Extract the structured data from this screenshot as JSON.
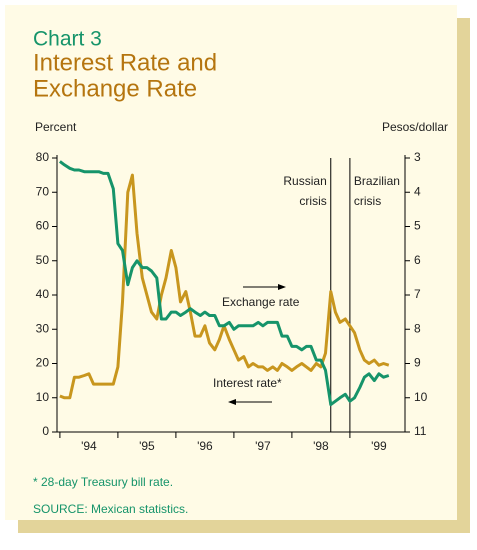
{
  "chart_data": {
    "type": "line",
    "kicker": "Chart 3",
    "title": [
      "Interest Rate and",
      "Exchange Rate"
    ],
    "ylabel": "Percent",
    "y2label": "Pesos/dollar",
    "x": [
      1994,
      1994.08,
      1994.17,
      1994.25,
      1994.33,
      1994.42,
      1994.5,
      1994.58,
      1994.67,
      1994.75,
      1994.83,
      1994.92,
      1995,
      1995.08,
      1995.17,
      1995.25,
      1995.33,
      1995.42,
      1995.5,
      1995.58,
      1995.67,
      1995.75,
      1995.83,
      1995.92,
      1996,
      1996.08,
      1996.17,
      1996.25,
      1996.33,
      1996.42,
      1996.5,
      1996.58,
      1996.67,
      1996.75,
      1996.83,
      1996.92,
      1997,
      1997.08,
      1997.17,
      1997.25,
      1997.33,
      1997.42,
      1997.5,
      1997.58,
      1997.67,
      1997.75,
      1997.83,
      1997.92,
      1998,
      1998.08,
      1998.17,
      1998.25,
      1998.33,
      1998.42,
      1998.5,
      1998.58,
      1998.67,
      1998.75,
      1998.83,
      1998.92,
      1999,
      1999.08,
      1999.17,
      1999.25,
      1999.33,
      1999.42,
      1999.5,
      1999.58,
      1999.67
    ],
    "series": [
      {
        "name": "Interest rate*",
        "color": "#c8961e",
        "axis": "y",
        "values": [
          10.5,
          10,
          10,
          16,
          16,
          16.5,
          17,
          14,
          14,
          14,
          14,
          14,
          19,
          38,
          70,
          75,
          58,
          45,
          40,
          35,
          33,
          40,
          45,
          53,
          48,
          38,
          41,
          35,
          28,
          28,
          31,
          26,
          24,
          27,
          31,
          27,
          24,
          21,
          22,
          19,
          20,
          19,
          19,
          18,
          19,
          18,
          20,
          19,
          18,
          19,
          20,
          19,
          18,
          20,
          19,
          23,
          41,
          35,
          32,
          33,
          31,
          29,
          24,
          21,
          20,
          21,
          19.5,
          20,
          19.5
        ]
      },
      {
        "name": "Exchange rate",
        "color": "#16946a",
        "axis": "y2",
        "values": [
          3.1,
          3.2,
          3.3,
          3.35,
          3.35,
          3.4,
          3.4,
          3.4,
          3.4,
          3.45,
          3.45,
          3.9,
          5.5,
          5.7,
          6.7,
          6.2,
          6.0,
          6.2,
          6.2,
          6.3,
          6.5,
          7.7,
          7.7,
          7.5,
          7.5,
          7.6,
          7.5,
          7.4,
          7.5,
          7.6,
          7.5,
          7.6,
          7.6,
          7.9,
          7.9,
          7.8,
          8.0,
          7.9,
          7.9,
          7.9,
          7.9,
          7.8,
          7.9,
          7.8,
          7.8,
          7.8,
          8.2,
          8.2,
          8.5,
          8.5,
          8.6,
          8.5,
          8.5,
          8.9,
          8.9,
          9.2,
          10.2,
          10.1,
          10.0,
          9.9,
          10.1,
          10.0,
          9.7,
          9.4,
          9.3,
          9.5,
          9.3,
          9.4,
          9.35
        ]
      }
    ],
    "xlim": [
      1993.95,
      1999.95
    ],
    "xticks": [
      {
        "value": 1994.5,
        "label": "'94"
      },
      {
        "value": 1995.5,
        "label": "'95"
      },
      {
        "value": 1996.5,
        "label": "'96"
      },
      {
        "value": 1997.5,
        "label": "'97"
      },
      {
        "value": 1998.5,
        "label": "'98"
      },
      {
        "value": 1999.5,
        "label": "'99"
      }
    ],
    "xminorticks": [
      1994,
      1995,
      1996,
      1997,
      1998,
      1999
    ],
    "ylim": [
      0,
      80
    ],
    "yticks": [
      0,
      10,
      20,
      30,
      40,
      50,
      60,
      70,
      80
    ],
    "y2lim": [
      11,
      3
    ],
    "y2ticks": [
      3,
      4,
      5,
      6,
      7,
      8,
      9,
      10,
      11
    ],
    "events": [
      {
        "x": 1998.67,
        "label": [
          "Russian",
          "crisis"
        ]
      },
      {
        "x": 1999.0,
        "label": [
          "Brazilian",
          "crisis"
        ]
      }
    ],
    "footnote": "* 28-day Treasury bill rate.",
    "source": "SOURCE: Mexican statistics."
  }
}
